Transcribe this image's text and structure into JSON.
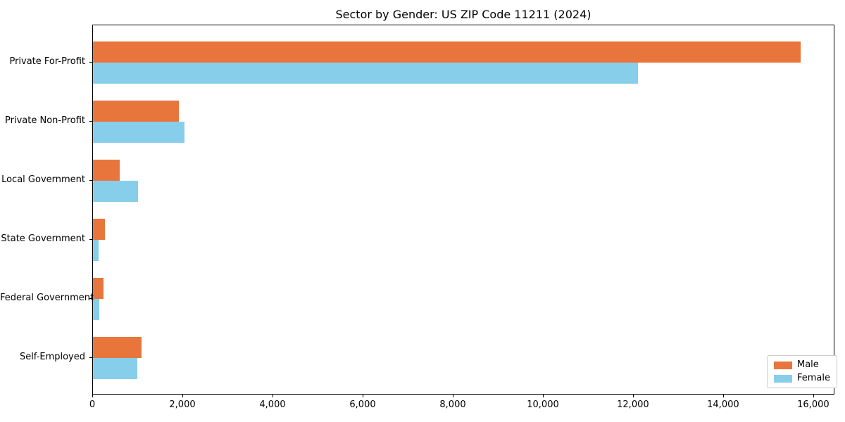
{
  "chart_data": {
    "type": "bar",
    "orientation": "horizontal",
    "title": "Sector by Gender: US ZIP Code 11211 (2024)",
    "categories": [
      "Private For-Profit",
      "Private Non-Profit",
      "Local Government",
      "State Government",
      "Federal Government",
      "Self-Employed"
    ],
    "series": [
      {
        "name": "Male",
        "color": "#e8763c",
        "values": [
          15700,
          1900,
          600,
          270,
          230,
          1070
        ]
      },
      {
        "name": "Female",
        "color": "#87ceeb",
        "values": [
          12100,
          2030,
          1000,
          130,
          140,
          980
        ]
      }
    ],
    "xlabel": "",
    "ylabel": "",
    "xlim": [
      0,
      16470
    ],
    "xticks": [
      0,
      2000,
      4000,
      6000,
      8000,
      10000,
      12000,
      14000,
      16000
    ],
    "xtick_labels": [
      "0",
      "2,000",
      "4,000",
      "6,000",
      "8,000",
      "10,000",
      "12,000",
      "14,000",
      "16,000"
    ],
    "legend_position": "lower right",
    "grid": false,
    "colors": {
      "axis": "#000000",
      "legend_border": "#cccccc",
      "background": "#ffffff"
    }
  }
}
